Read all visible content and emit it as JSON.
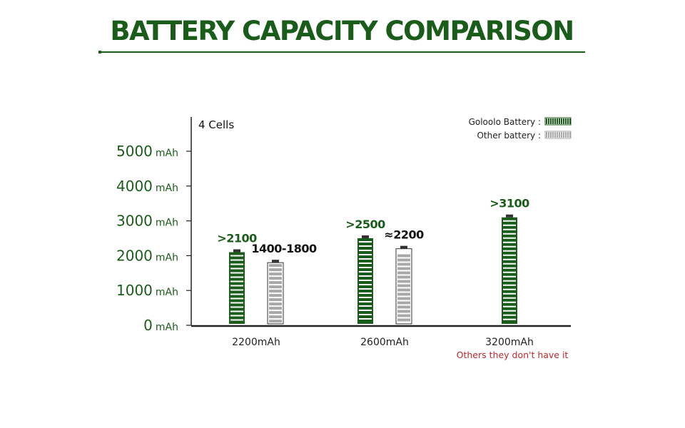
{
  "page_title": "BATTERY CAPACITY COMPARISON",
  "chart_data": {
    "type": "bar",
    "subtitle": "4 Cells",
    "categories": [
      "2200mAh",
      "2600mAh",
      "3200mAh"
    ],
    "category_notes": [
      "",
      "",
      "Others they don't have it"
    ],
    "y_ticks": [
      {
        "value": 0,
        "label": "0",
        "unit": "mAh"
      },
      {
        "value": 1000,
        "label": "1000",
        "unit": "mAh"
      },
      {
        "value": 2000,
        "label": "2000",
        "unit": "mAh"
      },
      {
        "value": 3000,
        "label": "3000",
        "unit": "mAh"
      },
      {
        "value": 4000,
        "label": "4000",
        "unit": "mAh"
      },
      {
        "value": 5000,
        "label": "5000",
        "unit": "mAh"
      }
    ],
    "ylim": [
      0,
      5000
    ],
    "series": [
      {
        "name": "Goloolo Battery",
        "legend_label": "Goloolo Battery :",
        "color": "#1a5c1a",
        "values": [
          2100,
          2500,
          3100
        ],
        "labels": [
          ">2100",
          ">2500",
          ">3100"
        ]
      },
      {
        "name": "Other battery",
        "legend_label": "Other battery :",
        "color": "#a8a8a8",
        "values": [
          1800,
          2200,
          null
        ],
        "range_low": [
          1400,
          null,
          null
        ],
        "labels": [
          "1400-1800",
          "≈2200",
          ""
        ]
      }
    ],
    "legend_position": "top-right",
    "grid": false,
    "colors": {
      "accent": "#1a5c1a",
      "note": "#c0282d",
      "label_dark": "#111111",
      "axis": "#222222"
    }
  }
}
